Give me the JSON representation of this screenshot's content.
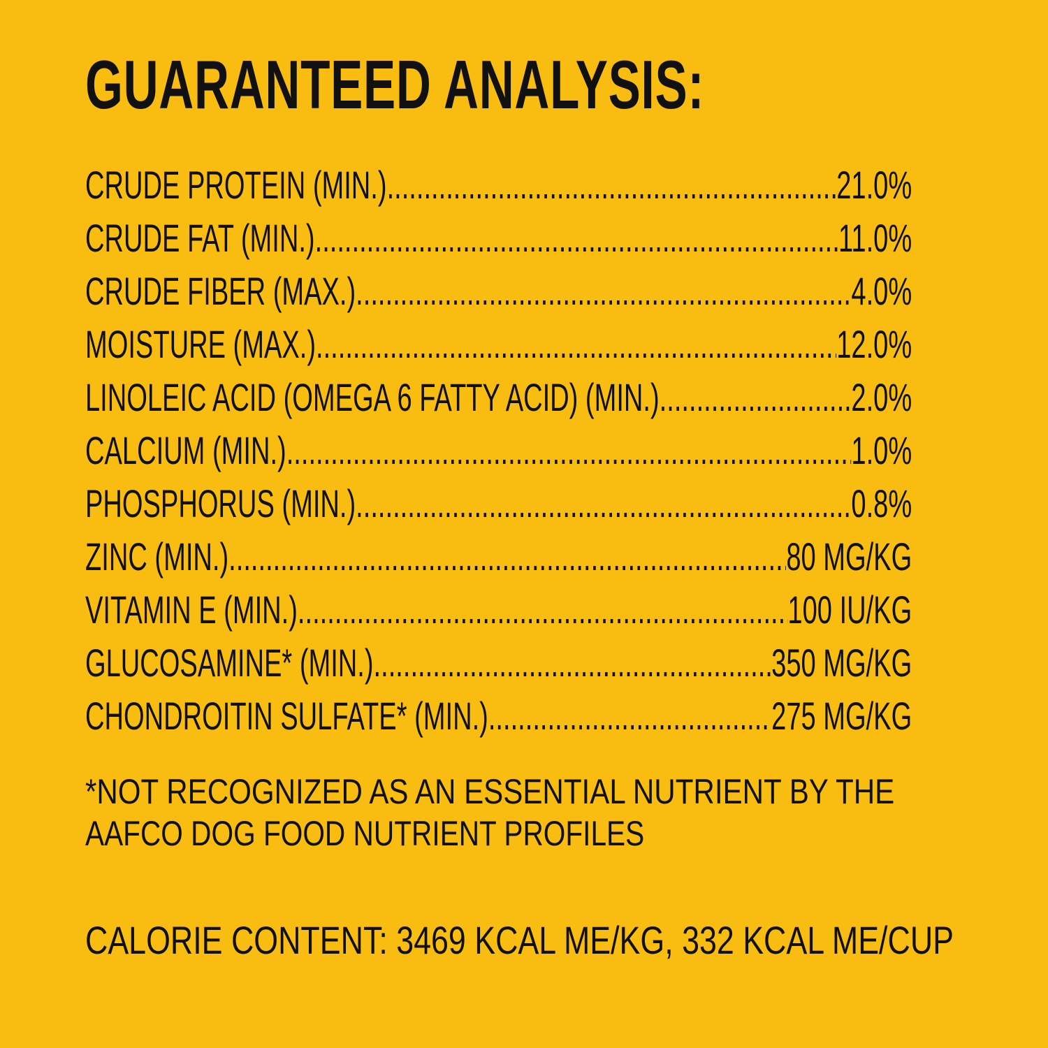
{
  "title": "GUARANTEED ANALYSIS:",
  "rows": [
    {
      "label": "CRUDE PROTEIN (MIN.)",
      "value": "21.0%"
    },
    {
      "label": "CRUDE FAT (MIN.)",
      "value": "11.0%"
    },
    {
      "label": "CRUDE FIBER (MAX.)",
      "value": "4.0%"
    },
    {
      "label": "MOISTURE (MAX.)",
      "value": "12.0%"
    },
    {
      "label": "LINOLEIC ACID (OMEGA 6 FATTY ACID) (MIN.)",
      "value": "2.0%"
    },
    {
      "label": "CALCIUM (MIN.)",
      "value": "1.0%"
    },
    {
      "label": "PHOSPHORUS (MIN.)",
      "value": "0.8%"
    },
    {
      "label": "ZINC (MIN.)",
      "value": "80 MG/KG"
    },
    {
      "label": "VITAMIN E (MIN.)",
      "value": "100 IU/KG"
    },
    {
      "label": "GLUCOSAMINE* (MIN.)",
      "value": "350 MG/KG"
    },
    {
      "label": "CHONDROITIN SULFATE* (MIN.)",
      "value": "275 MG/KG"
    }
  ],
  "footnote": {
    "line1": "*NOT RECOGNIZED AS AN ESSENTIAL NUTRIENT BY THE",
    "line2": "AAFCO DOG FOOD NUTRIENT PROFILES"
  },
  "calorie": "CALORIE CONTENT: 3469 KCAL ME/KG, 332 KCAL ME/CUP",
  "colors": {
    "background": "#F9BD12",
    "text": "#111111"
  }
}
